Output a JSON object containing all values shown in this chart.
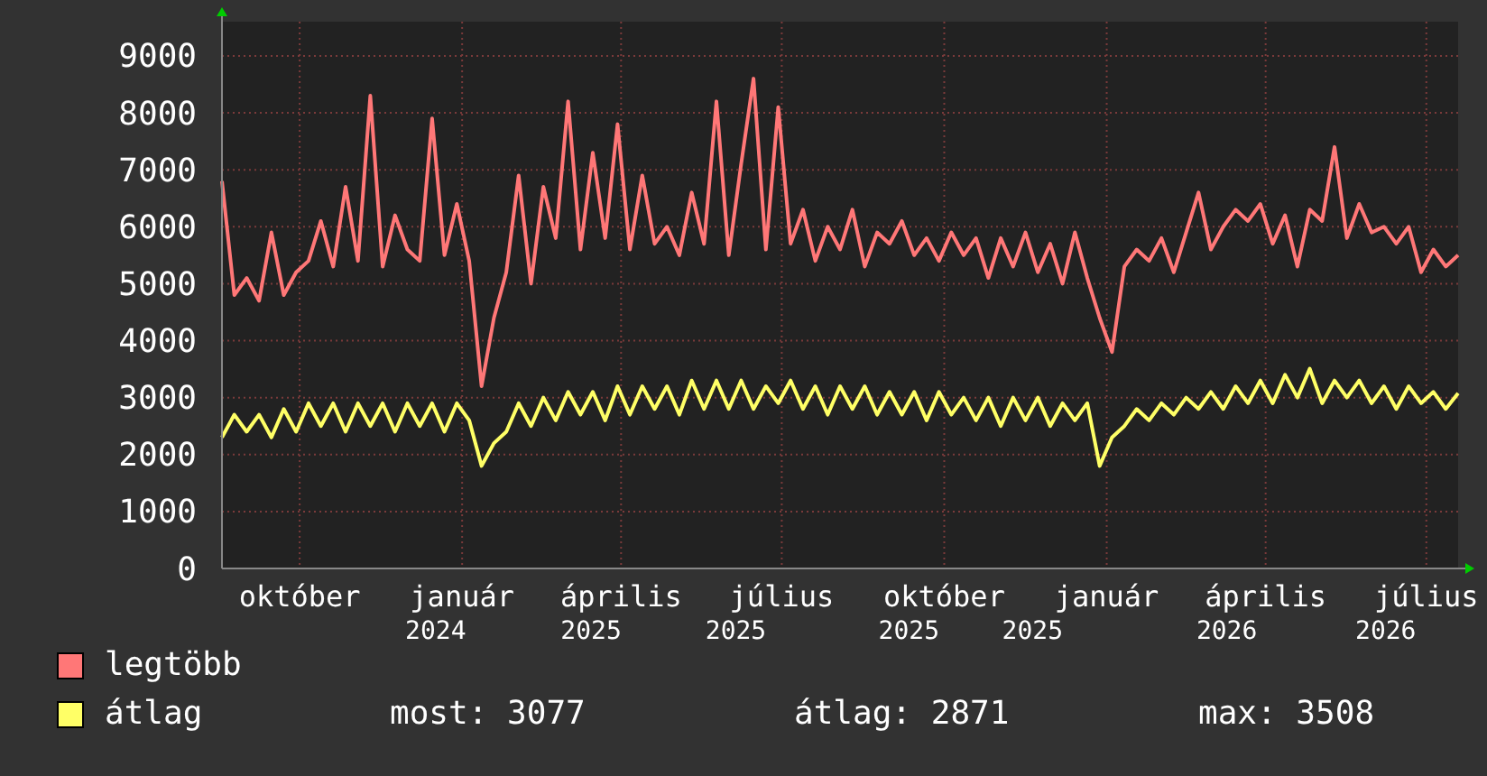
{
  "chart_data": {
    "type": "line",
    "x": [
      "2024-09-01",
      "2024-09-08",
      "2024-09-15",
      "2024-09-22",
      "2024-09-29",
      "2024-10-06",
      "2024-10-13",
      "2024-10-20",
      "2024-10-27",
      "2024-11-03",
      "2024-11-10",
      "2024-11-17",
      "2024-11-24",
      "2024-12-01",
      "2024-12-08",
      "2024-12-15",
      "2024-12-22",
      "2024-12-29",
      "2025-01-05",
      "2025-01-12",
      "2025-01-19",
      "2025-01-26",
      "2025-02-02",
      "2025-02-09",
      "2025-02-16",
      "2025-02-23",
      "2025-03-02",
      "2025-03-09",
      "2025-03-16",
      "2025-03-23",
      "2025-03-30",
      "2025-04-06",
      "2025-04-13",
      "2025-04-20",
      "2025-04-27",
      "2025-05-04",
      "2025-05-11",
      "2025-05-18",
      "2025-05-25",
      "2025-06-01",
      "2025-06-08",
      "2025-06-15",
      "2025-06-22",
      "2025-06-29",
      "2025-07-06",
      "2025-07-13",
      "2025-07-20",
      "2025-07-27",
      "2025-08-03",
      "2025-08-10",
      "2025-08-17",
      "2025-08-24",
      "2025-08-31",
      "2025-09-07",
      "2025-09-14",
      "2025-09-21",
      "2025-09-28",
      "2025-10-05",
      "2025-10-12",
      "2025-10-19",
      "2025-10-26",
      "2025-11-02",
      "2025-11-09",
      "2025-11-16",
      "2025-11-23",
      "2025-11-30",
      "2025-12-07",
      "2025-12-14",
      "2025-12-21",
      "2025-12-28",
      "2026-01-04",
      "2026-01-11",
      "2026-01-18",
      "2026-01-25",
      "2026-02-01",
      "2026-02-08",
      "2026-02-15",
      "2026-02-22",
      "2026-03-01",
      "2026-03-08",
      "2026-03-15",
      "2026-03-22",
      "2026-03-29",
      "2026-04-05",
      "2026-04-12",
      "2026-04-19",
      "2026-04-26",
      "2026-05-03",
      "2026-05-10",
      "2026-05-17",
      "2026-05-24",
      "2026-05-31",
      "2026-06-07",
      "2026-06-14",
      "2026-06-21",
      "2026-06-28",
      "2026-07-05",
      "2026-07-12",
      "2026-07-19",
      "2026-07-26",
      "2026-08-02"
    ],
    "series": [
      {
        "name": "legtöbb",
        "color": "#ff7777",
        "values": [
          6800,
          4800,
          5100,
          4700,
          5900,
          4800,
          5200,
          5400,
          6100,
          5300,
          6700,
          5400,
          8300,
          5300,
          6200,
          5600,
          5400,
          7900,
          5500,
          6400,
          5400,
          3200,
          4400,
          5200,
          6900,
          5000,
          6700,
          5800,
          8200,
          5600,
          7300,
          5800,
          7800,
          5600,
          6900,
          5700,
          6000,
          5500,
          6600,
          5700,
          8200,
          5500,
          7100,
          8600,
          5600,
          8100,
          5700,
          6300,
          5400,
          6000,
          5600,
          6300,
          5300,
          5900,
          5700,
          6100,
          5500,
          5800,
          5400,
          5900,
          5500,
          5800,
          5100,
          5800,
          5300,
          5900,
          5200,
          5700,
          5000,
          5900,
          5100,
          4400,
          3800,
          5300,
          5600,
          5400,
          5800,
          5200,
          5900,
          6600,
          5600,
          6000,
          6300,
          6100,
          6400,
          5700,
          6200,
          5300,
          6300,
          6100,
          7400,
          5800,
          6400,
          5900,
          6000,
          5700,
          6000,
          5200,
          5600,
          5300,
          5500
        ]
      },
      {
        "name": "átlag",
        "color": "#ffff66",
        "values": [
          2300,
          2700,
          2400,
          2700,
          2300,
          2800,
          2400,
          2900,
          2500,
          2900,
          2400,
          2900,
          2500,
          2900,
          2400,
          2900,
          2500,
          2900,
          2400,
          2900,
          2600,
          1800,
          2200,
          2400,
          2900,
          2500,
          3000,
          2600,
          3100,
          2700,
          3100,
          2600,
          3200,
          2700,
          3200,
          2800,
          3200,
          2700,
          3300,
          2800,
          3300,
          2800,
          3300,
          2800,
          3200,
          2900,
          3300,
          2800,
          3200,
          2700,
          3200,
          2800,
          3200,
          2700,
          3100,
          2700,
          3100,
          2600,
          3100,
          2700,
          3000,
          2600,
          3000,
          2500,
          3000,
          2600,
          3000,
          2500,
          2900,
          2600,
          2900,
          1800,
          2300,
          2500,
          2800,
          2600,
          2900,
          2700,
          3000,
          2800,
          3100,
          2800,
          3200,
          2900,
          3300,
          2900,
          3400,
          3000,
          3508,
          2900,
          3300,
          3000,
          3300,
          2900,
          3200,
          2800,
          3200,
          2900,
          3100,
          2800,
          3077
        ]
      }
    ],
    "xlim": [
      "2024-09-01",
      "2026-08-02"
    ],
    "xticks": [
      {
        "value": "2024-10-15",
        "label": "október"
      },
      {
        "value": "2025-01-15",
        "label": "január"
      },
      {
        "value": "2025-04-15",
        "label": "április"
      },
      {
        "value": "2025-07-15",
        "label": "július"
      },
      {
        "value": "2025-10-15",
        "label": "október"
      },
      {
        "value": "2026-01-15",
        "label": "január"
      },
      {
        "value": "2026-04-15",
        "label": "április"
      },
      {
        "value": "2026-07-15",
        "label": "július"
      }
    ],
    "x2lim": [
      "2024-09-01",
      "2026-08-02"
    ],
    "x2ticks": [
      {
        "value": "2024-12-31",
        "label": "2024"
      },
      {
        "value": "2025-03-29",
        "label": "2025"
      },
      {
        "value": "2025-06-19",
        "label": "2025"
      },
      {
        "value": "2025-09-25",
        "label": "2025"
      },
      {
        "value": "2025-12-04",
        "label": "2025"
      },
      {
        "value": "2026-03-24",
        "label": "2026"
      },
      {
        "value": "2026-06-22",
        "label": "2026"
      }
    ],
    "ylim": [
      0,
      9600
    ],
    "yticks": [
      0,
      1000,
      2000,
      3000,
      4000,
      5000,
      6000,
      7000,
      8000,
      9000
    ],
    "grid": true,
    "legend": "bottom",
    "annotations": [
      "most: 3077",
      "átlag: 2871",
      "max: 3508"
    ]
  }
}
